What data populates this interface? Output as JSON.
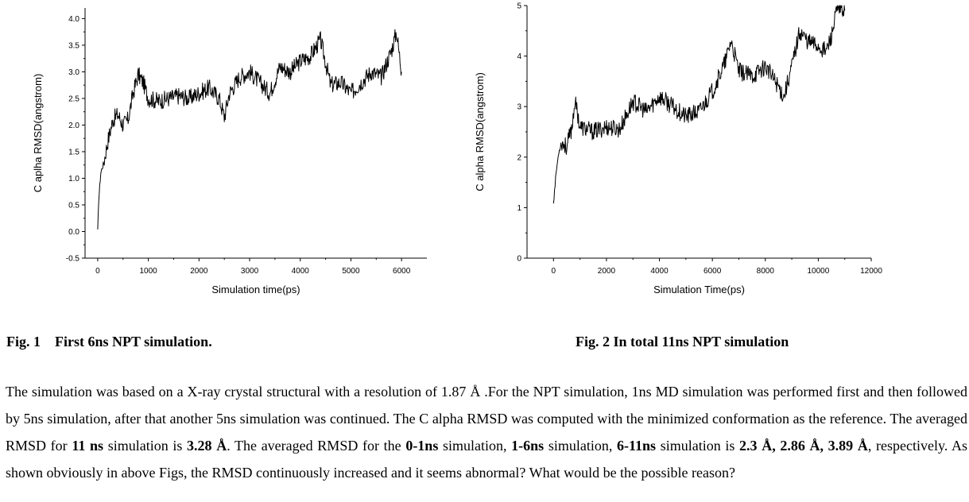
{
  "chart_data": [
    {
      "type": "line",
      "title": "",
      "xlabel": "Simulation time(ps)",
      "ylabel": "C aplha RMSD(angstrom)",
      "xlim": [
        -250,
        6500
      ],
      "ylim": [
        -0.5,
        4.2
      ],
      "xticks": [
        0,
        1000,
        2000,
        3000,
        4000,
        5000,
        6000
      ],
      "yticks": [
        "-0.5",
        "0.0",
        "0.5",
        "1.0",
        "1.5",
        "2.0",
        "2.5",
        "3.0",
        "3.5",
        "4.0"
      ],
      "series": [
        {
          "x": [
            0,
            20,
            60,
            120,
            200,
            300,
            400,
            500,
            600,
            700,
            800,
            900,
            1000,
            1200,
            1400,
            1600,
            1800,
            2000,
            2200,
            2400,
            2500,
            2600,
            2800,
            3000,
            3200,
            3400,
            3600,
            3800,
            4000,
            4200,
            4400,
            4600,
            4800,
            5000,
            5200,
            5400,
            5600,
            5800,
            5900,
            6000
          ],
          "y": [
            0.0,
            0.6,
            1.1,
            1.3,
            1.7,
            2.1,
            2.2,
            2.0,
            2.1,
            2.6,
            2.95,
            2.8,
            2.5,
            2.45,
            2.5,
            2.55,
            2.5,
            2.6,
            2.7,
            2.5,
            2.15,
            2.6,
            2.9,
            3.0,
            2.8,
            2.6,
            3.1,
            3.0,
            3.2,
            3.3,
            3.6,
            2.75,
            2.8,
            2.6,
            2.8,
            3.0,
            2.9,
            3.4,
            3.75,
            3.0
          ]
        }
      ]
    },
    {
      "type": "line",
      "title": "",
      "xlabel": "Simulation Time(ps)",
      "ylabel": "C alpha RMSD(angstrom)",
      "xlim": [
        -1000,
        12000
      ],
      "ylim": [
        0,
        5
      ],
      "xticks": [
        0,
        2000,
        4000,
        6000,
        8000,
        10000,
        12000
      ],
      "yticks": [
        "0",
        "1",
        "2",
        "3",
        "4",
        "5"
      ],
      "series": [
        {
          "x": [
            0,
            100,
            200,
            300,
            500,
            700,
            800,
            900,
            1000,
            1500,
            2000,
            2500,
            3000,
            3500,
            4000,
            4500,
            5000,
            5500,
            6000,
            6500,
            6700,
            7000,
            7500,
            8000,
            8500,
            8700,
            9000,
            9300,
            9600,
            10000,
            10300,
            10500,
            10700,
            11000
          ],
          "y": [
            1.1,
            1.7,
            2.1,
            2.3,
            2.2,
            2.6,
            3.1,
            2.9,
            2.6,
            2.5,
            2.6,
            2.55,
            3.1,
            2.9,
            3.2,
            3.0,
            2.8,
            2.9,
            3.3,
            3.9,
            4.3,
            3.7,
            3.6,
            3.8,
            3.4,
            3.2,
            3.8,
            4.5,
            4.3,
            4.2,
            4.1,
            4.4,
            4.9,
            4.9
          ]
        }
      ]
    }
  ],
  "captions": {
    "fig1": "Fig. 1    First 6ns NPT simulation.",
    "fig2": "Fig. 2 In total 11ns NPT simulation"
  },
  "paragraph": [
    {
      "text": "The simulation was based on a X-ray crystal structural with a resolution of 1.87 Å .For the NPT simulation, 1ns MD simulation was performed first and then followed by 5ns simulation, after that another 5ns simulation was continued. The C alpha RMSD was computed with the minimized conformation as the reference. The averaged RMSD for ",
      "bold": false
    },
    {
      "text": "11 ns",
      "bold": true
    },
    {
      "text": " simulation is ",
      "bold": false
    },
    {
      "text": "3.28 Å",
      "bold": true
    },
    {
      "text": ". The averaged RMSD for the ",
      "bold": false
    },
    {
      "text": "0-1ns",
      "bold": true
    },
    {
      "text": " simulation, ",
      "bold": false
    },
    {
      "text": "1-6ns",
      "bold": true
    },
    {
      "text": " simulation, ",
      "bold": false
    },
    {
      "text": "6-11ns",
      "bold": true
    },
    {
      "text": " simulation is ",
      "bold": false
    },
    {
      "text": "2.3 Å, 2.86 Å, 3.89 Å",
      "bold": true
    },
    {
      "text": ", respectively. As shown obviously in above Figs, the RMSD continuously increased and it seems abnormal? What would be the possible reason?",
      "bold": false
    }
  ]
}
